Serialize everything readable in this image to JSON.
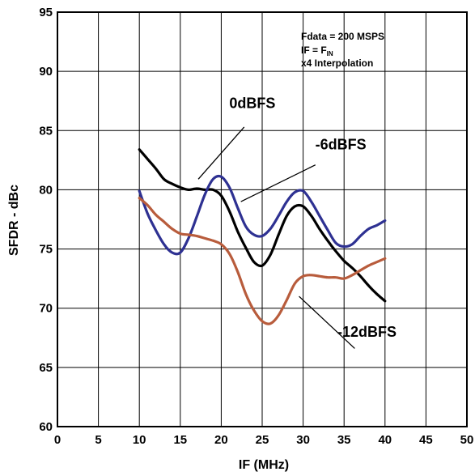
{
  "chart_data": {
    "type": "line",
    "xlabel": "IF (MHz)",
    "ylabel": "SFDR - dBc",
    "xlim": [
      0,
      50
    ],
    "ylim": [
      60,
      95
    ],
    "x_ticks": [
      0,
      5,
      10,
      15,
      20,
      25,
      30,
      35,
      40,
      45,
      50
    ],
    "y_ticks": [
      60,
      65,
      70,
      75,
      80,
      85,
      90,
      95
    ],
    "grid": true,
    "annotation": {
      "line1": "Fdata = 200 MSPS",
      "line2_prefix": "IF = F",
      "line2_sub": "IN",
      "line3": "x4 Interpolation"
    },
    "series": [
      {
        "name": "0dBFS",
        "color": "#000000",
        "x": [
          10,
          11,
          12,
          13,
          14,
          15,
          16,
          17,
          18,
          19,
          20,
          21,
          22,
          23,
          24,
          25,
          26,
          27,
          28,
          29,
          30,
          31,
          32,
          33,
          34,
          35,
          36,
          37,
          38,
          39,
          40
        ],
        "values": [
          83.4,
          82.6,
          81.8,
          80.9,
          80.5,
          80.2,
          80.0,
          80.1,
          80.0,
          80.0,
          79.5,
          78.2,
          76.5,
          75.1,
          73.9,
          73.6,
          74.5,
          76.2,
          77.8,
          78.6,
          78.6,
          77.8,
          76.7,
          75.7,
          74.8,
          74.0,
          73.4,
          72.7,
          71.9,
          71.2,
          70.6
        ]
      },
      {
        "name": "-6dBFS",
        "color": "#2e3192",
        "x": [
          10,
          11,
          12,
          13,
          14,
          15,
          16,
          17,
          18,
          19,
          20,
          21,
          22,
          23,
          24,
          25,
          26,
          27,
          28,
          29,
          30,
          31,
          32,
          33,
          34,
          35,
          36,
          37,
          38,
          39,
          40
        ],
        "values": [
          79.9,
          78.0,
          76.6,
          75.4,
          74.7,
          74.7,
          75.9,
          77.7,
          79.6,
          80.9,
          81.1,
          80.2,
          78.5,
          76.9,
          76.2,
          76.1,
          76.7,
          77.8,
          79.0,
          79.8,
          79.9,
          79.0,
          77.8,
          76.6,
          75.5,
          75.2,
          75.4,
          76.1,
          76.7,
          77.0,
          77.4
        ]
      },
      {
        "name": "-12dBFS",
        "color": "#b85c3c",
        "x": [
          10,
          11,
          12,
          13,
          14,
          15,
          16,
          17,
          18,
          19,
          20,
          21,
          22,
          23,
          24,
          25,
          26,
          27,
          28,
          29,
          30,
          31,
          32,
          33,
          34,
          35,
          36,
          37,
          38,
          39,
          40
        ],
        "values": [
          79.3,
          78.7,
          77.9,
          77.3,
          76.7,
          76.3,
          76.2,
          76.1,
          75.9,
          75.7,
          75.4,
          74.6,
          73.1,
          71.2,
          69.8,
          68.9,
          68.7,
          69.4,
          70.7,
          72.1,
          72.7,
          72.8,
          72.7,
          72.6,
          72.6,
          72.5,
          72.8,
          73.2,
          73.6,
          73.9,
          74.2
        ]
      }
    ],
    "curve_labels": [
      {
        "series": "0dBFS",
        "text": "0dBFS",
        "x": 23.8,
        "y": 86.9,
        "leader_x": [
          22.8,
          17.2
        ],
        "leader_y": [
          85.3,
          80.9
        ]
      },
      {
        "series": "-6dBFS",
        "text": "-6dBFS",
        "x": 34.6,
        "y": 83.4,
        "leader_x": [
          31.5,
          22.4
        ],
        "leader_y": [
          82.1,
          79.0
        ]
      },
      {
        "series": "-12dBFS",
        "text": "-12dBFS",
        "x": 37.8,
        "y": 67.6,
        "leader_x": [
          36.3,
          29.5
        ],
        "leader_y": [
          66.6,
          71.0
        ]
      }
    ]
  }
}
